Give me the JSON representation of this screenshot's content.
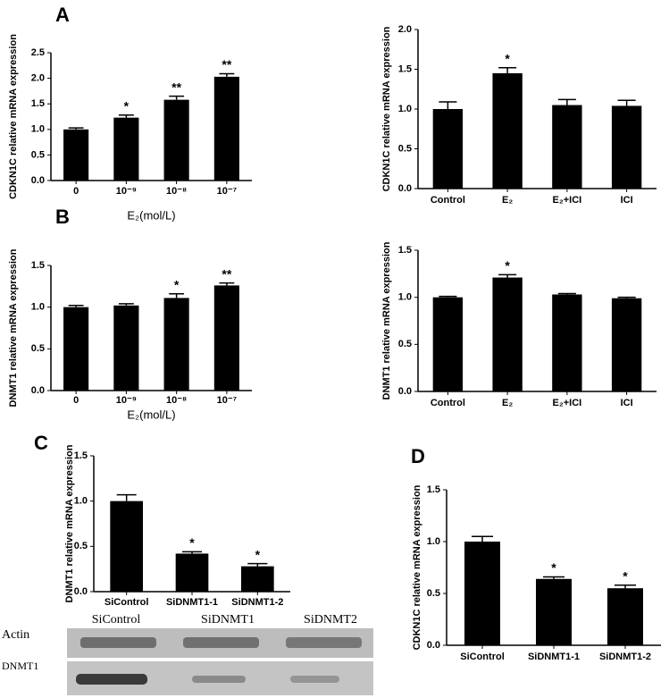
{
  "chart_data": [
    {
      "type": "bar",
      "panel": "A",
      "ylabel": "CDKN1C relative mRNA expression",
      "xlabel": "E₂(mol/L)",
      "categories": [
        "0",
        "10⁻⁹",
        "10⁻⁸",
        "10⁻⁷"
      ],
      "values": [
        1.0,
        1.23,
        1.58,
        2.03
      ],
      "errors": [
        0.03,
        0.05,
        0.07,
        0.06
      ],
      "annotations": [
        null,
        "*",
        "**",
        "**"
      ],
      "color": "#000000",
      "ylim": [
        0,
        2.5
      ],
      "yticks": [
        {
          "value": 0,
          "label": "0.0"
        },
        0.5,
        {
          "value": 1,
          "label": "1.0"
        },
        1.5,
        {
          "value": 2,
          "label": "2.0"
        },
        2.5
      ]
    },
    {
      "type": "bar",
      "ylabel": "CDKN1C relative mRNA expression",
      "categories": [
        "Control",
        "E₂",
        "E₂+ICI",
        "ICI"
      ],
      "values": [
        1.0,
        1.45,
        1.05,
        1.04
      ],
      "errors": [
        0.09,
        0.07,
        0.07,
        0.07
      ],
      "annotations": [
        null,
        "*",
        null,
        null
      ],
      "color": "#000000",
      "ylim": [
        0,
        2
      ],
      "yticks": [
        {
          "value": 0,
          "label": "0.0"
        },
        0.5,
        {
          "value": 1,
          "label": "1.0"
        },
        1.5,
        {
          "value": 2,
          "label": "2.0"
        }
      ]
    },
    {
      "type": "bar",
      "panel": "B",
      "ylabel": "DNMT1 relative mRNA expression",
      "xlabel": "E₂(mol/L)",
      "categories": [
        "0",
        "10⁻⁹",
        "10⁻⁸",
        "10⁻⁷"
      ],
      "values": [
        1.0,
        1.02,
        1.11,
        1.26
      ],
      "errors": [
        0.02,
        0.02,
        0.05,
        0.03
      ],
      "annotations": [
        null,
        null,
        "*",
        "**"
      ],
      "color": "#000000",
      "ylim": [
        0,
        1.5
      ],
      "yticks": [
        {
          "value": 0,
          "label": "0.0"
        },
        0.5,
        {
          "value": 1,
          "label": "1.0"
        },
        1.5
      ]
    },
    {
      "type": "bar",
      "ylabel": "DNMT1 relative mRNA expression",
      "categories": [
        "Control",
        "E₂",
        "E₂+ICI",
        "ICI"
      ],
      "values": [
        1.0,
        1.21,
        1.03,
        0.99
      ],
      "errors": [
        0.01,
        0.03,
        0.01,
        0.01
      ],
      "annotations": [
        null,
        "*",
        null,
        null
      ],
      "color": "#000000",
      "ylim": [
        0,
        1.5
      ],
      "yticks": [
        {
          "value": 0,
          "label": "0.0"
        },
        0.5,
        {
          "value": 1,
          "label": "1.0"
        },
        1.5
      ]
    },
    {
      "type": "bar",
      "panel": "C",
      "ylabel": "DNMT1 relative mRNA expression",
      "categories": [
        "SiControl",
        "SiDNMT1-1",
        "SiDNMT1-2"
      ],
      "values": [
        1.0,
        0.42,
        0.28
      ],
      "errors": [
        0.07,
        0.02,
        0.03
      ],
      "annotations": [
        null,
        "*",
        "*"
      ],
      "color": "#000000",
      "ylim": [
        0,
        1.5
      ],
      "yticks": [
        {
          "value": 0,
          "label": "0.0"
        },
        0.5,
        {
          "value": 1,
          "label": "1.0"
        },
        1.5
      ]
    },
    {
      "type": "bar",
      "panel": "D",
      "ylabel": "CDKN1C relative mRNA expression",
      "categories": [
        "SiControl",
        "SiDNMT1-1",
        "SiDNMT1-2"
      ],
      "values": [
        1.0,
        0.64,
        0.55
      ],
      "errors": [
        0.05,
        0.02,
        0.03
      ],
      "annotations": [
        null,
        "*",
        "*"
      ],
      "color": "#000000",
      "ylim": [
        0,
        1.5
      ],
      "yticks": [
        {
          "value": 0,
          "label": "0.0"
        },
        0.5,
        {
          "value": 1,
          "label": "1.0"
        },
        1.5
      ]
    }
  ],
  "blot": {
    "lanes": [
      "SiControl",
      "SiDNMT1",
      "SiDNMT2"
    ],
    "rows": [
      "Actin",
      "DNMT1"
    ]
  }
}
